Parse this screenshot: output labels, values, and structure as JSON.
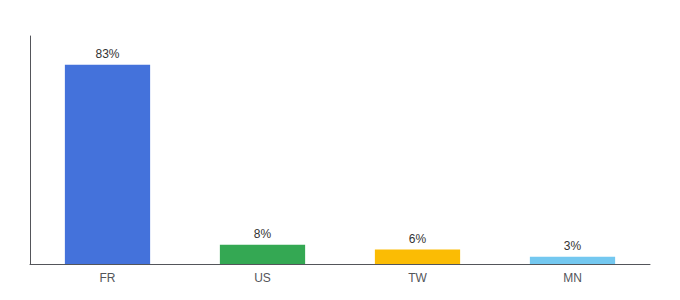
{
  "chart_data": {
    "type": "bar",
    "categories": [
      "FR",
      "US",
      "TW",
      "MN"
    ],
    "values": [
      83,
      8,
      6,
      3
    ],
    "value_labels": [
      "83%",
      "8%",
      "6%",
      "3%"
    ],
    "colors": [
      "#4472db",
      "#34a853",
      "#fbbc04",
      "#74c8f0"
    ],
    "ylim": [
      0,
      95
    ],
    "grid": false,
    "data_labels": true,
    "tick_labels": "x"
  }
}
